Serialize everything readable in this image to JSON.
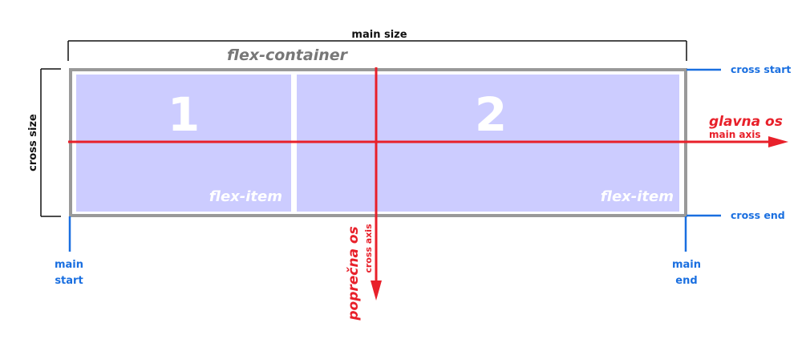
{
  "labels": {
    "main_size": "main size",
    "cross_size": "cross size",
    "flex_container": "flex-container",
    "cross_start": "cross start",
    "cross_end": "cross end",
    "main_start_line1": "main",
    "main_start_line2": "start",
    "main_end_line1": "main",
    "main_end_line2": "end",
    "glavna_os": "glavna os",
    "main_axis": "main axis",
    "poprecna_os": "poprečna os",
    "cross_axis": "cross axis"
  },
  "items": [
    {
      "number": "1",
      "label": "flex-item"
    },
    {
      "number": "2",
      "label": "flex-item"
    }
  ],
  "colors": {
    "container_border": "#999999",
    "item_fill": "#ccccff",
    "item_text": "#ffffff",
    "axis_red": "#e8202a",
    "edge_blue": "#1a6fe0",
    "bracket_black": "#111111",
    "container_label": "#777777"
  }
}
